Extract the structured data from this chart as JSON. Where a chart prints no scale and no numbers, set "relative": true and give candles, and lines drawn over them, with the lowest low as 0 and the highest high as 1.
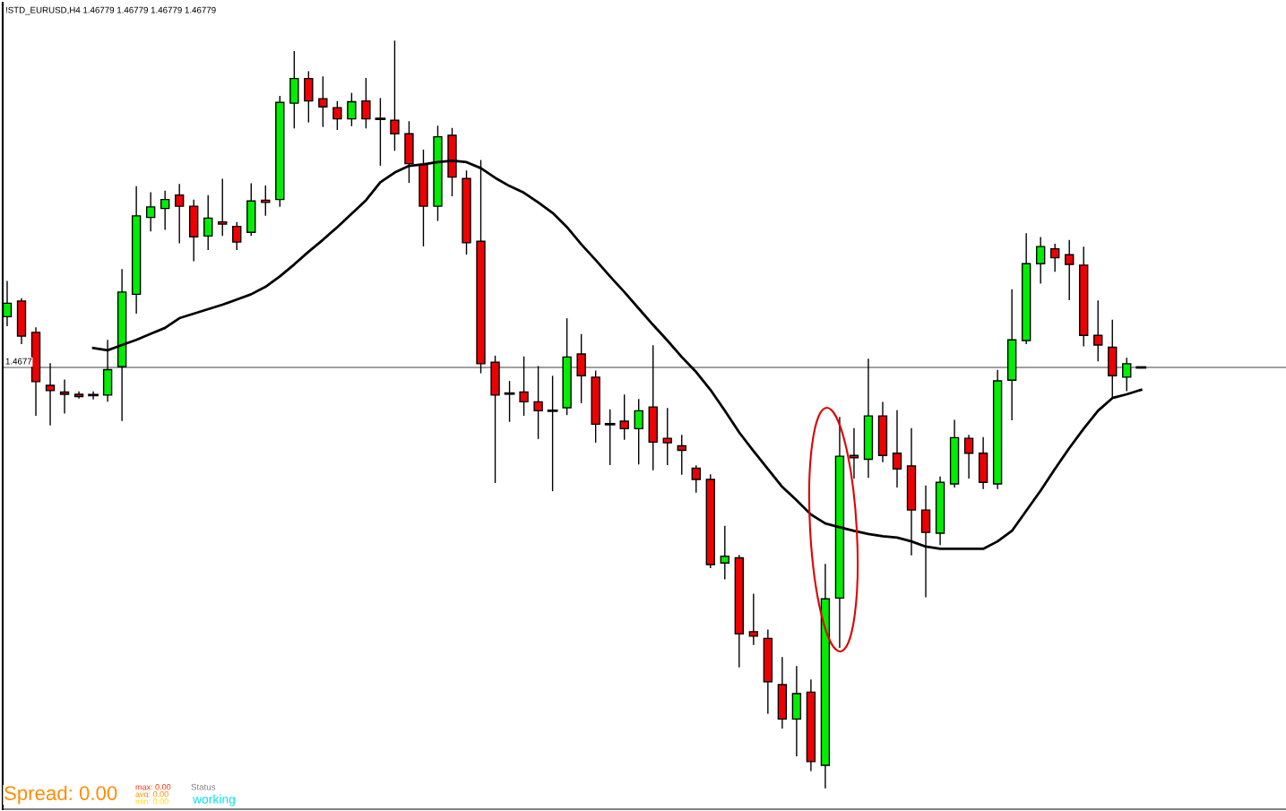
{
  "chart_data": {
    "type": "candlestick",
    "relative": true,
    "title": "!STD_EURUSD,H4 1.46779 1.46779 1.46779 1.46779",
    "categories": [
      null,
      null,
      null,
      null,
      null,
      null,
      null,
      null,
      null,
      null,
      null,
      null,
      null,
      null,
      null,
      null,
      null,
      null,
      null,
      null,
      null,
      null,
      null,
      null,
      null,
      null,
      null,
      null,
      null,
      null,
      null,
      null,
      null,
      null,
      null,
      null,
      null,
      null,
      null,
      null,
      null,
      null,
      null,
      null,
      null,
      null,
      null,
      null,
      null,
      null,
      null,
      null,
      null,
      null,
      null,
      null,
      null,
      null,
      null,
      null,
      null,
      null,
      null,
      null,
      null,
      null,
      null,
      null,
      null,
      null,
      null,
      null,
      null,
      null,
      null,
      null,
      null,
      null,
      null,
      null
    ],
    "colors": [
      "#00ee00",
      "#ee0000",
      "#ee0000",
      "#ee0000",
      "#ee0000",
      "#ee0000",
      "#000000",
      "#00ee00",
      "#00ee00",
      "#00ee00",
      "#00ee00",
      "#00ee00",
      "#ee0000",
      "#ee0000",
      "#00ee00",
      "#ee0000",
      "#ee0000",
      "#00ee00",
      "#ee0000",
      "#00ee00",
      "#00ee00",
      "#ee0000",
      "#ee0000",
      "#ee0000",
      "#00ee00",
      "#ee0000",
      "#000000",
      "#ee0000",
      "#ee0000",
      "#ee0000",
      "#00ee00",
      "#ee0000",
      "#ee0000",
      "#ee0000",
      "#ee0000",
      "#000000",
      "#ee0000",
      "#ee0000",
      "#000000",
      "#00ee00",
      "#ee0000",
      "#ee0000",
      "#000000",
      "#ee0000",
      "#00ee00",
      "#ee0000",
      "#ee0000",
      "#ee0000",
      "#ee0000",
      "#ee0000",
      "#00ee00",
      "#ee0000",
      "#ee0000",
      "#ee0000",
      "#ee0000",
      "#00ee00",
      "#ee0000",
      "#00ee00",
      "#00ee00",
      "#ee0000",
      "#00ee00",
      "#ee0000",
      "#ee0000",
      "#ee0000",
      "#ee0000",
      "#00ee00",
      "#00ee00",
      "#ee0000",
      "#ee0000",
      "#00ee00",
      "#00ee00",
      "#00ee00",
      "#00ee00",
      "#ee0000",
      "#ee0000",
      "#ee0000",
      "#ee0000",
      "#ee0000",
      "#00ee00",
      "#000000"
    ],
    "ohlc": [
      [
        0.631,
        0.678,
        0.619,
        0.649
      ],
      [
        0.652,
        0.655,
        0.595,
        0.605
      ],
      [
        0.61,
        0.616,
        0.499,
        0.544
      ],
      [
        0.539,
        0.568,
        0.486,
        0.532
      ],
      [
        0.53,
        0.546,
        0.502,
        0.527
      ],
      [
        0.527,
        0.53,
        0.522,
        0.524
      ],
      [
        0.526,
        0.53,
        0.521,
        0.526
      ],
      [
        0.526,
        0.599,
        0.518,
        0.56
      ],
      [
        0.564,
        0.694,
        0.492,
        0.664
      ],
      [
        0.661,
        0.805,
        0.636,
        0.766
      ],
      [
        0.764,
        0.797,
        0.746,
        0.778
      ],
      [
        0.776,
        0.799,
        0.748,
        0.788
      ],
      [
        0.794,
        0.808,
        0.73,
        0.779
      ],
      [
        0.779,
        0.787,
        0.706,
        0.738
      ],
      [
        0.739,
        0.793,
        0.721,
        0.763
      ],
      [
        0.758,
        0.815,
        0.74,
        0.755
      ],
      [
        0.752,
        0.757,
        0.721,
        0.731
      ],
      [
        0.744,
        0.809,
        0.74,
        0.786
      ],
      [
        0.787,
        0.806,
        0.767,
        0.784
      ],
      [
        0.788,
        0.926,
        0.779,
        0.918
      ],
      [
        0.917,
        0.986,
        0.884,
        0.95
      ],
      [
        0.95,
        0.959,
        0.892,
        0.92
      ],
      [
        0.923,
        0.952,
        0.886,
        0.912
      ],
      [
        0.911,
        0.919,
        0.882,
        0.896
      ],
      [
        0.896,
        0.93,
        0.887,
        0.919
      ],
      [
        0.92,
        0.95,
        0.884,
        0.896
      ],
      [
        0.896,
        0.923,
        0.834,
        0.896
      ],
      [
        0.894,
        1.0,
        0.854,
        0.876
      ],
      [
        0.876,
        0.892,
        0.811,
        0.836
      ],
      [
        0.835,
        0.854,
        0.726,
        0.779
      ],
      [
        0.779,
        0.886,
        0.76,
        0.872
      ],
      [
        0.874,
        0.883,
        0.793,
        0.818
      ],
      [
        0.816,
        0.826,
        0.715,
        0.73
      ],
      [
        0.732,
        0.84,
        0.556,
        0.568
      ],
      [
        0.57,
        0.578,
        0.409,
        0.526
      ],
      [
        0.528,
        0.544,
        0.491,
        0.528
      ],
      [
        0.53,
        0.577,
        0.499,
        0.517
      ],
      [
        0.517,
        0.564,
        0.468,
        0.505
      ],
      [
        0.505,
        0.551,
        0.398,
        0.505
      ],
      [
        0.509,
        0.628,
        0.5,
        0.577
      ],
      [
        0.581,
        0.607,
        0.516,
        0.552
      ],
      [
        0.55,
        0.558,
        0.463,
        0.487
      ],
      [
        0.487,
        0.506,
        0.433,
        0.487
      ],
      [
        0.491,
        0.526,
        0.467,
        0.481
      ],
      [
        0.481,
        0.52,
        0.434,
        0.505
      ],
      [
        0.51,
        0.592,
        0.426,
        0.463
      ],
      [
        0.468,
        0.508,
        0.433,
        0.462
      ],
      [
        0.458,
        0.472,
        0.42,
        0.452
      ],
      [
        0.428,
        0.431,
        0.396,
        0.413
      ],
      [
        0.413,
        0.419,
        0.295,
        0.299
      ],
      [
        0.301,
        0.35,
        0.28,
        0.31
      ],
      [
        0.308,
        0.311,
        0.162,
        0.206
      ],
      [
        0.209,
        0.259,
        0.192,
        0.203
      ],
      [
        0.2,
        0.211,
        0.1,
        0.142
      ],
      [
        0.138,
        0.174,
        0.08,
        0.092
      ],
      [
        0.092,
        0.162,
        0.043,
        0.126
      ],
      [
        0.128,
        0.144,
        0.023,
        0.035
      ],
      [
        0.03,
        0.299,
        0.0,
        0.253
      ],
      [
        0.254,
        0.496,
        0.188,
        0.444
      ],
      [
        0.445,
        0.481,
        0.415,
        0.442
      ],
      [
        0.44,
        0.574,
        0.416,
        0.498
      ],
      [
        0.498,
        0.516,
        0.437,
        0.445
      ],
      [
        0.448,
        0.505,
        0.403,
        0.427
      ],
      [
        0.431,
        0.481,
        0.312,
        0.372
      ],
      [
        0.372,
        0.404,
        0.256,
        0.342
      ],
      [
        0.341,
        0.416,
        0.326,
        0.409
      ],
      [
        0.407,
        0.492,
        0.403,
        0.469
      ],
      [
        0.468,
        0.472,
        0.415,
        0.448
      ],
      [
        0.448,
        0.469,
        0.401,
        0.409
      ],
      [
        0.407,
        0.559,
        0.401,
        0.545
      ],
      [
        0.546,
        0.667,
        0.493,
        0.6
      ],
      [
        0.599,
        0.742,
        0.595,
        0.702
      ],
      [
        0.702,
        0.737,
        0.676,
        0.725
      ],
      [
        0.722,
        0.728,
        0.692,
        0.71
      ],
      [
        0.714,
        0.733,
        0.654,
        0.701
      ],
      [
        0.7,
        0.724,
        0.592,
        0.606
      ],
      [
        0.606,
        0.652,
        0.572,
        0.593
      ],
      [
        0.59,
        0.626,
        0.523,
        0.552
      ],
      [
        0.55,
        0.575,
        0.532,
        0.568
      ],
      [
        0.563,
        0.563,
        0.563,
        0.563
      ]
    ],
    "series": [
      {
        "type": "line",
        "color": "#000000",
        "values": [
          null,
          null,
          null,
          null,
          null,
          null,
          0.589,
          0.586,
          0.593,
          0.6,
          0.608,
          0.616,
          0.629,
          0.635,
          0.641,
          0.647,
          0.654,
          0.661,
          0.671,
          0.685,
          0.701,
          0.718,
          0.734,
          0.751,
          0.769,
          0.787,
          0.811,
          0.824,
          0.833,
          0.835,
          0.838,
          0.84,
          0.838,
          0.83,
          0.817,
          0.806,
          0.797,
          0.784,
          0.77,
          0.751,
          0.728,
          0.707,
          0.685,
          0.664,
          0.642,
          0.62,
          0.599,
          0.577,
          0.557,
          0.533,
          0.505,
          0.476,
          0.451,
          0.427,
          0.403,
          0.385,
          0.366,
          0.354,
          0.349,
          0.344,
          0.34,
          0.337,
          0.335,
          0.33,
          0.323,
          0.32,
          0.32,
          0.32,
          0.32,
          0.33,
          0.344,
          0.371,
          0.398,
          0.427,
          0.455,
          0.481,
          0.505,
          0.522,
          0.527,
          0.533
        ]
      }
    ],
    "ref_lines": [
      {
        "axis": "y",
        "value": 0.563,
        "color": "#808080"
      }
    ],
    "annotations": [
      "Spread: 0.00",
      "max: 0.00",
      "avg: 0.00",
      "min: 0.00",
      "Status",
      "working",
      "1.4677"
    ],
    "grid": false,
    "legend": false
  }
}
